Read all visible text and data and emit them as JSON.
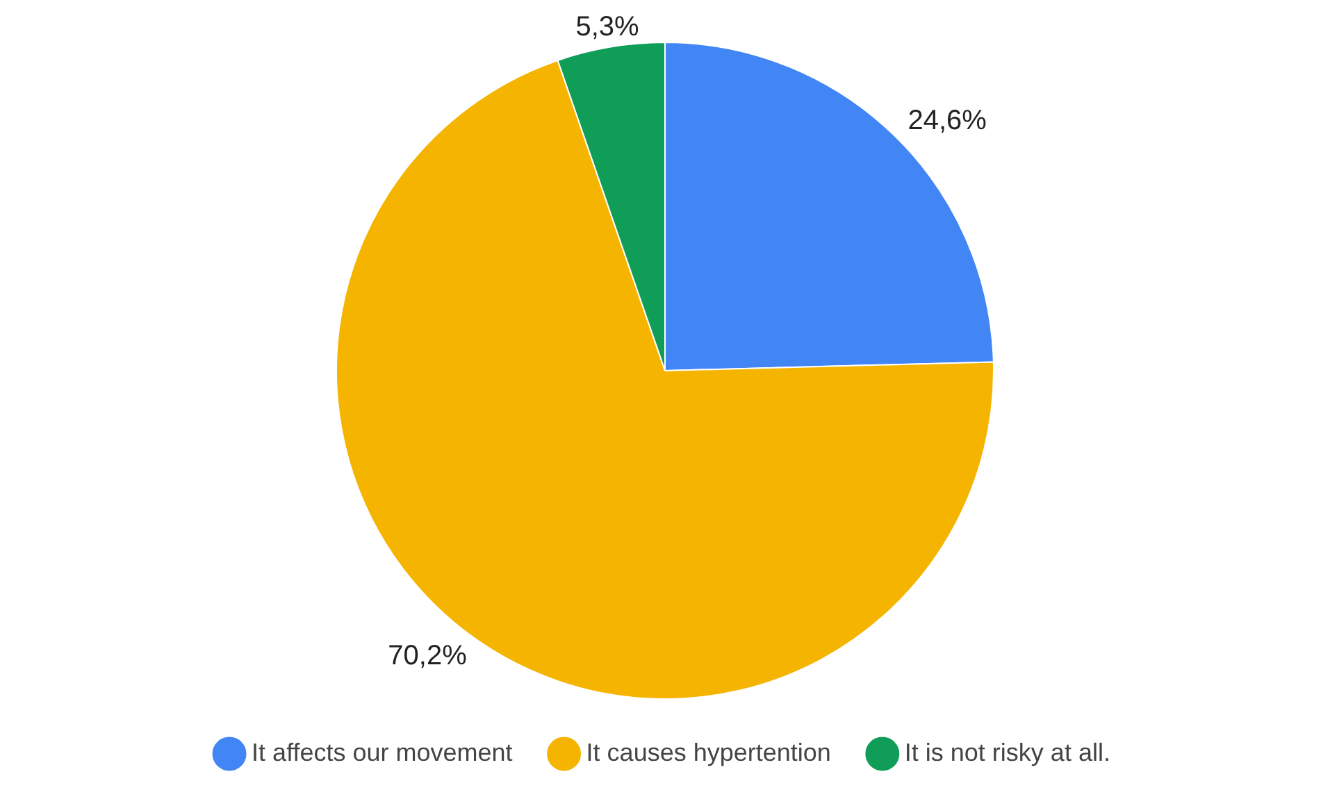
{
  "chart_data": {
    "type": "pie",
    "categories": [
      "It affects our movement",
      "It causes hypertention",
      "It is not risky at all."
    ],
    "values": [
      24.6,
      70.2,
      5.3
    ],
    "colors": [
      "#4285f4",
      "#f4b400",
      "#0f9d58"
    ],
    "value_labels": [
      "24,6%",
      "70,2%",
      "5,3%"
    ],
    "legend": "bottom"
  }
}
